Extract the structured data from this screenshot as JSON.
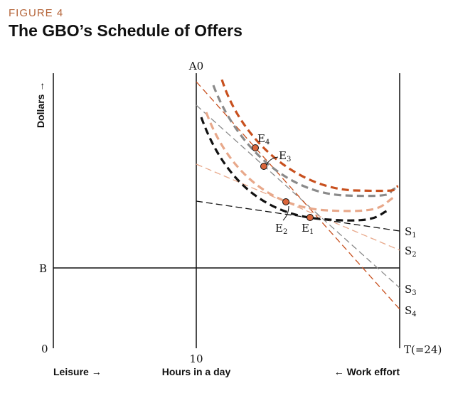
{
  "header": {
    "figure_label": "FIGURE 4",
    "title": "The GBO’s Schedule of Offers"
  },
  "colors": {
    "accent": "#c8501e",
    "salmon": "#e8a88a",
    "gray": "#8a8a8a",
    "black": "#111111",
    "figure_label": "#b5653a"
  },
  "chart_data": {
    "type": "line",
    "title": "The GBO’s Schedule of Offers",
    "ylabel": "Dollars →",
    "xlabel": "Hours in a day",
    "x_left_label": "Leisure →",
    "x_right_label": "← Work effort",
    "axis_labels": {
      "origin_top": "A0",
      "level_b": "B",
      "origin": "0",
      "ten": "10",
      "total": "T(=24)"
    },
    "schedules": [
      {
        "name": "S",
        "sub": "1",
        "color": "#111111"
      },
      {
        "name": "S",
        "sub": "2",
        "color": "#e8a88a"
      },
      {
        "name": "S",
        "sub": "3",
        "color": "#8a8a8a"
      },
      {
        "name": "S",
        "sub": "4",
        "color": "#c8501e"
      }
    ],
    "equilibria": [
      {
        "name": "E",
        "sub": "1"
      },
      {
        "name": "E",
        "sub": "2"
      },
      {
        "name": "E",
        "sub": "3"
      },
      {
        "name": "E",
        "sub": "4"
      }
    ]
  }
}
